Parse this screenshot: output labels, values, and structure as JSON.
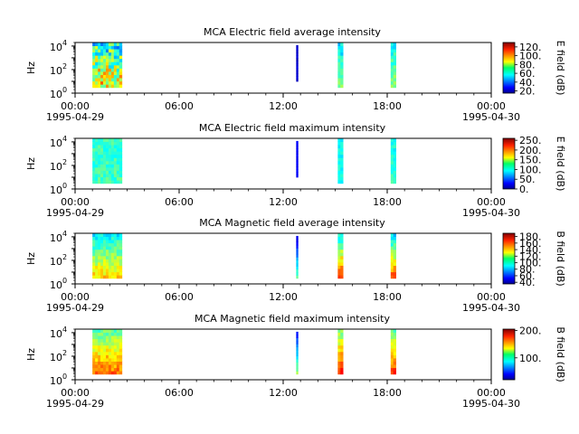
{
  "figure": {
    "xticks": [
      {
        "time": "00:00",
        "date": "1995-04-29",
        "hour": 0
      },
      {
        "time": "06:00",
        "date": "",
        "hour": 6
      },
      {
        "time": "12:00",
        "date": "",
        "hour": 12
      },
      {
        "time": "18:00",
        "date": "",
        "hour": 18
      },
      {
        "time": "00:00",
        "date": "1995-04-30",
        "hour": 24
      }
    ],
    "xminor_step_hours": 1,
    "ylabel": "Hz",
    "colormap": "jet"
  },
  "chart_data": [
    {
      "type": "heatmap",
      "title": "MCA  Electric field average intensity",
      "xlabel": "",
      "ylabel": "Hz",
      "xlim_hours": [
        0,
        24
      ],
      "ylim": [
        1,
        20000
      ],
      "yscale": "log",
      "yticks": [
        {
          "value": 1,
          "label": "10",
          "exp": "0"
        },
        {
          "value": 100,
          "label": "10",
          "exp": "2"
        },
        {
          "value": 10000,
          "label": "10",
          "exp": "4"
        }
      ],
      "colorbar": {
        "label": "E field (dB)",
        "range": [
          15,
          130
        ],
        "ticks": [
          20,
          40,
          60,
          80,
          100,
          120
        ],
        "tick_labels": [
          "20.",
          "40.",
          "60.",
          "80.",
          "100.",
          "120."
        ]
      },
      "data_blocks": [
        {
          "start_hour": 1.0,
          "end_hour": 2.7,
          "fmin_hz": 3,
          "fmax_hz": 20000,
          "low_db": 90,
          "high_db": 60,
          "spread_db": 22
        },
        {
          "start_hour": 12.75,
          "end_hour": 12.85,
          "fmin_hz": 10,
          "fmax_hz": 12000,
          "low_db": 25,
          "high_db": 22,
          "spread_db": 3
        },
        {
          "start_hour": 15.15,
          "end_hour": 15.45,
          "fmin_hz": 3,
          "fmax_hz": 20000,
          "low_db": 70,
          "high_db": 55,
          "spread_db": 8
        },
        {
          "start_hour": 18.2,
          "end_hour": 18.5,
          "fmin_hz": 3,
          "fmax_hz": 20000,
          "low_db": 75,
          "high_db": 58,
          "spread_db": 8
        }
      ]
    },
    {
      "type": "heatmap",
      "title": "MCA  Electric field maximum intensity",
      "xlabel": "",
      "ylabel": "Hz",
      "xlim_hours": [
        0,
        24
      ],
      "ylim": [
        1,
        20000
      ],
      "yscale": "log",
      "yticks": [
        {
          "value": 1,
          "label": "10",
          "exp": "0"
        },
        {
          "value": 100,
          "label": "10",
          "exp": "2"
        },
        {
          "value": 10000,
          "label": "10",
          "exp": "4"
        }
      ],
      "colorbar": {
        "label": "E field (dB)",
        "range": [
          0,
          260
        ],
        "ticks": [
          0,
          50,
          100,
          150,
          200,
          250
        ],
        "tick_labels": [
          "0.",
          "50.",
          "100.",
          "150.",
          "200.",
          "250."
        ]
      },
      "data_blocks": [
        {
          "start_hour": 1.0,
          "end_hour": 2.7,
          "fmin_hz": 3,
          "fmax_hz": 20000,
          "low_db": 115,
          "high_db": 110,
          "spread_db": 15
        },
        {
          "start_hour": 12.75,
          "end_hour": 12.85,
          "fmin_hz": 10,
          "fmax_hz": 12000,
          "low_db": 30,
          "high_db": 30,
          "spread_db": 5
        },
        {
          "start_hour": 15.15,
          "end_hour": 15.45,
          "fmin_hz": 3,
          "fmax_hz": 20000,
          "low_db": 105,
          "high_db": 100,
          "spread_db": 12
        },
        {
          "start_hour": 18.2,
          "end_hour": 18.5,
          "fmin_hz": 3,
          "fmax_hz": 20000,
          "low_db": 110,
          "high_db": 100,
          "spread_db": 12
        }
      ]
    },
    {
      "type": "heatmap",
      "title": "MCA  Magnetic field average intensity",
      "xlabel": "",
      "ylabel": "Hz",
      "xlim_hours": [
        0,
        24
      ],
      "ylim": [
        1,
        20000
      ],
      "yscale": "log",
      "yticks": [
        {
          "value": 1,
          "label": "10",
          "exp": "0"
        },
        {
          "value": 100,
          "label": "10",
          "exp": "2"
        },
        {
          "value": 10000,
          "label": "10",
          "exp": "4"
        }
      ],
      "colorbar": {
        "label": "B field (dB)",
        "range": [
          35,
          190
        ],
        "ticks": [
          40,
          60,
          80,
          100,
          120,
          140,
          160,
          180
        ],
        "tick_labels": [
          "40.",
          "60.",
          "80.",
          "100.",
          "120.",
          "140.",
          "160.",
          "180."
        ]
      },
      "data_blocks": [
        {
          "start_hour": 1.0,
          "end_hour": 2.7,
          "fmin_hz": 3,
          "fmax_hz": 20000,
          "low_db": 140,
          "high_db": 90,
          "spread_db": 10
        },
        {
          "start_hour": 12.75,
          "end_hour": 12.85,
          "fmin_hz": 3,
          "fmax_hz": 12000,
          "low_db": 110,
          "high_db": 45,
          "spread_db": 5
        },
        {
          "start_hour": 15.15,
          "end_hour": 15.45,
          "fmin_hz": 3,
          "fmax_hz": 20000,
          "low_db": 165,
          "high_db": 90,
          "spread_db": 10
        },
        {
          "start_hour": 18.2,
          "end_hour": 18.5,
          "fmin_hz": 3,
          "fmax_hz": 20000,
          "low_db": 160,
          "high_db": 85,
          "spread_db": 10
        }
      ]
    },
    {
      "type": "heatmap",
      "title": "MCA  Magnetic field maximum intensity",
      "xlabel": "",
      "ylabel": "Hz",
      "xlim_hours": [
        0,
        24
      ],
      "ylim": [
        1,
        20000
      ],
      "yscale": "log",
      "yticks": [
        {
          "value": 1,
          "label": "10",
          "exp": "0"
        },
        {
          "value": 100,
          "label": "10",
          "exp": "2"
        },
        {
          "value": 10000,
          "label": "10",
          "exp": "4"
        }
      ],
      "colorbar": {
        "label": "B field (dB)",
        "range": [
          20,
          205
        ],
        "ticks": [
          100,
          200
        ],
        "tick_labels": [
          "100.",
          "200."
        ]
      },
      "data_blocks": [
        {
          "start_hour": 1.0,
          "end_hour": 2.7,
          "fmin_hz": 3,
          "fmax_hz": 20000,
          "low_db": 165,
          "high_db": 105,
          "spread_db": 12
        },
        {
          "start_hour": 12.75,
          "end_hour": 12.85,
          "fmin_hz": 3,
          "fmax_hz": 12000,
          "low_db": 120,
          "high_db": 40,
          "spread_db": 5
        },
        {
          "start_hour": 15.15,
          "end_hour": 15.45,
          "fmin_hz": 3,
          "fmax_hz": 20000,
          "low_db": 180,
          "high_db": 110,
          "spread_db": 10
        },
        {
          "start_hour": 18.2,
          "end_hour": 18.5,
          "fmin_hz": 3,
          "fmax_hz": 20000,
          "low_db": 175,
          "high_db": 105,
          "spread_db": 10
        }
      ]
    }
  ]
}
